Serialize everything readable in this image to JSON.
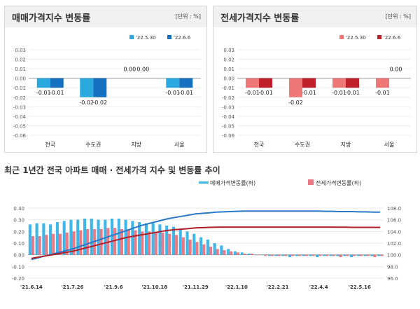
{
  "chart_data": [
    {
      "type": "bar",
      "title": "매매가격지수 변동률",
      "unit": "[단위 : %]",
      "categories": [
        "전국",
        "수도권",
        "지방",
        "서울"
      ],
      "series": [
        {
          "name": "'22.5.30",
          "color": "#29a9e0",
          "values": [
            -0.01,
            -0.02,
            0.0,
            -0.01
          ]
        },
        {
          "name": "'22.6.6",
          "color": "#1570c0",
          "values": [
            -0.01,
            -0.02,
            0.0,
            -0.01
          ]
        }
      ],
      "value_labels": [
        [
          "-0.01",
          "-0.02",
          "0.00",
          "-0.01"
        ],
        [
          "-0.01",
          "-0.02",
          "0.00",
          "-0.01"
        ]
      ],
      "ylim": [
        -0.06,
        0.03
      ],
      "yticks": [
        "0.03",
        "0.02",
        "0.01",
        "0.00",
        "-0.01",
        "-0.02",
        "-0.03",
        "-0.04",
        "-0.05",
        "-0.06"
      ]
    },
    {
      "type": "bar",
      "title": "전세가격지수 변동률",
      "unit": "[단위 : %]",
      "categories": [
        "전국",
        "수도권",
        "지방",
        "서울"
      ],
      "series": [
        {
          "name": "'22.5.30",
          "color": "#ee7777",
          "values": [
            -0.01,
            -0.02,
            -0.01,
            -0.01
          ]
        },
        {
          "name": "'22.6.6",
          "color": "#c0202a",
          "values": [
            -0.01,
            -0.01,
            -0.01,
            0.0
          ]
        }
      ],
      "value_labels": [
        [
          "-0.01",
          "-0.02",
          "-0.01",
          "-0.01"
        ],
        [
          "-0.01",
          "-0.01",
          "-0.01",
          "0.00"
        ]
      ],
      "ylim": [
        -0.06,
        0.03
      ],
      "yticks": [
        "0.03",
        "0.02",
        "0.01",
        "0.00",
        "-0.01",
        "-0.02",
        "-0.03",
        "-0.04",
        "-0.05",
        "-0.06"
      ]
    },
    {
      "type": "bar+line",
      "title": "최근 1년간 전국 아파트 매매 · 전세가격 지수 및 변동률 추이",
      "legend": [
        "매매가격변동률(좌)",
        "전세가격변동률(좌)"
      ],
      "x_ticks": [
        "'21.6.14",
        "'21.7.26",
        "'21.9.6",
        "'21.10.18",
        "'21.11.29",
        "'22.1.10",
        "'22.2.21",
        "'22.4.4",
        "'22.5.16"
      ],
      "x_tick_index": [
        0,
        6,
        12,
        18,
        24,
        30,
        36,
        42,
        48
      ],
      "y_left": {
        "lim": [
          -0.2,
          0.4
        ],
        "ticks": [
          "0.40",
          "0.30",
          "0.20",
          "0.10",
          "0.00",
          "-0.10",
          "-0.20"
        ]
      },
      "y_right": {
        "lim": [
          96.0,
          108.0
        ],
        "ticks": [
          "108.0",
          "106.0",
          "104.0",
          "102.0",
          "100.0",
          "98.0",
          "96.0"
        ]
      },
      "sale_change": [
        0.26,
        0.27,
        0.27,
        0.26,
        0.28,
        0.29,
        0.3,
        0.3,
        0.31,
        0.31,
        0.3,
        0.3,
        0.31,
        0.31,
        0.3,
        0.29,
        0.28,
        0.27,
        0.27,
        0.26,
        0.25,
        0.24,
        0.22,
        0.2,
        0.18,
        0.15,
        0.13,
        0.1,
        0.08,
        0.05,
        0.03,
        0.02,
        0.01,
        0.0,
        0.0,
        -0.01,
        -0.01,
        -0.01,
        -0.02,
        -0.01,
        -0.01,
        -0.01,
        -0.02,
        -0.01,
        -0.01,
        -0.01,
        -0.01,
        -0.02,
        -0.01,
        -0.01,
        -0.01,
        -0.01
      ],
      "jeonse_change": [
        0.16,
        0.16,
        0.17,
        0.18,
        0.18,
        0.19,
        0.2,
        0.21,
        0.22,
        0.22,
        0.22,
        0.23,
        0.23,
        0.22,
        0.22,
        0.21,
        0.2,
        0.2,
        0.19,
        0.19,
        0.18,
        0.17,
        0.15,
        0.13,
        0.11,
        0.09,
        0.07,
        0.05,
        0.04,
        0.03,
        0.02,
        0.01,
        0.01,
        0.0,
        -0.01,
        -0.01,
        -0.01,
        -0.01,
        -0.01,
        -0.01,
        -0.01,
        -0.01,
        -0.01,
        -0.01,
        -0.01,
        -0.02,
        -0.01,
        -0.01,
        -0.01,
        -0.01,
        -0.02,
        -0.01
      ],
      "sale_index": [
        99.2,
        99.5,
        99.8,
        100.1,
        100.4,
        100.7,
        101.0,
        101.4,
        101.8,
        102.2,
        102.6,
        103.0,
        103.4,
        103.8,
        104.2,
        104.6,
        105.0,
        105.3,
        105.6,
        105.9,
        106.2,
        106.4,
        106.6,
        106.8,
        107.0,
        107.1,
        107.2,
        107.3,
        107.35,
        107.4,
        107.45,
        107.5,
        107.5,
        107.5,
        107.5,
        107.5,
        107.5,
        107.5,
        107.5,
        107.5,
        107.5,
        107.5,
        107.5,
        107.45,
        107.45,
        107.4,
        107.4,
        107.4,
        107.35,
        107.35,
        107.3,
        107.3
      ],
      "jeonse_index": [
        99.4,
        99.6,
        99.8,
        100.0,
        100.2,
        100.4,
        100.6,
        100.9,
        101.2,
        101.5,
        101.8,
        102.1,
        102.4,
        102.7,
        103.0,
        103.2,
        103.4,
        103.6,
        103.8,
        104.0,
        104.2,
        104.3,
        104.4,
        104.5,
        104.6,
        104.65,
        104.7,
        104.72,
        104.75,
        104.75,
        104.75,
        104.75,
        104.75,
        104.75,
        104.75,
        104.75,
        104.75,
        104.75,
        104.75,
        104.75,
        104.75,
        104.75,
        104.75,
        104.75,
        104.75,
        104.72,
        104.72,
        104.7,
        104.7,
        104.7,
        104.7,
        104.7
      ],
      "colors": {
        "sale_bar": "#3fb6e8",
        "jeonse_bar": "#e97a86",
        "sale_line": "#2b78c5",
        "jeonse_line": "#b01e2a"
      }
    }
  ]
}
